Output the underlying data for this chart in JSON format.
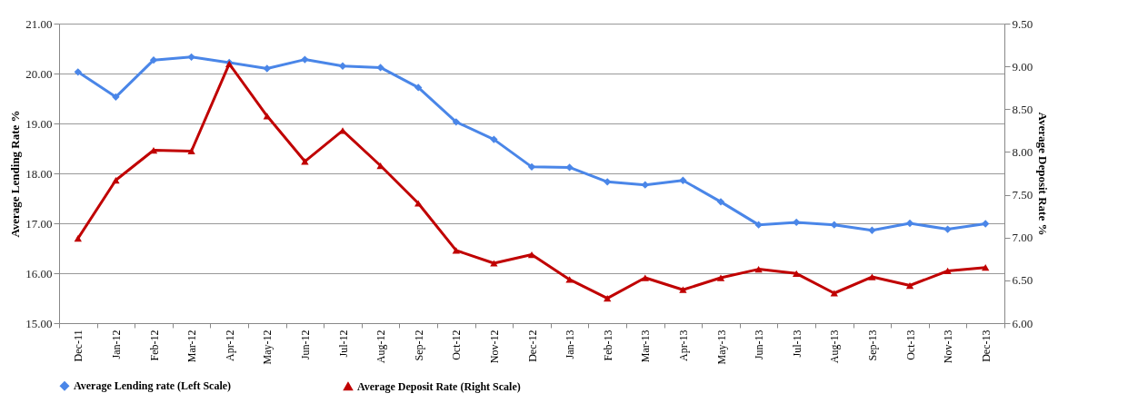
{
  "chart_data": {
    "type": "line",
    "ylabel": "Average Lending Rate %",
    "y2label": "Average Deposit Rate %",
    "categories": [
      "Dec-11",
      "Jan-12",
      "Feb-12",
      "Mar-12",
      "Apr-12",
      "May-12",
      "Jun-12",
      "Jul-12",
      "Aug-12",
      "Sep-12",
      "Oct-12",
      "Nov-12",
      "Dec-12",
      "Jan-13",
      "Feb-13",
      "Mar-13",
      "Apr-13",
      "May-13",
      "Jun-13",
      "Jul-13",
      "Aug-13",
      "Sep-13",
      "Oct-13",
      "Nov-13",
      "Dec-13"
    ],
    "series": [
      {
        "name": "Average Lending rate (Left Scale)",
        "color": "#4a86e8",
        "marker": "diamond",
        "values": [
          20.03,
          19.53,
          20.27,
          20.33,
          20.22,
          20.1,
          20.28,
          20.15,
          20.12,
          19.72,
          19.03,
          18.68,
          18.13,
          18.12,
          17.83,
          17.77,
          17.86,
          17.43,
          16.97,
          17.02,
          16.97,
          16.86,
          17.0,
          16.88,
          16.99
        ]
      },
      {
        "name": "Average Deposit Rate (Right Scale)",
        "color": "#c00000",
        "marker": "triangle",
        "axis": "y2",
        "values": [
          6.99,
          7.67,
          8.02,
          8.01,
          9.03,
          8.42,
          7.89,
          8.25,
          7.84,
          7.4,
          6.85,
          6.7,
          6.8,
          6.51,
          6.29,
          6.53,
          6.39,
          6.53,
          6.63,
          6.58,
          6.35,
          6.54,
          6.44,
          6.61,
          6.65
        ]
      }
    ],
    "ylim": [
      15,
      21
    ],
    "yticks": [
      {
        "value": 15,
        "label": "15.00"
      },
      {
        "value": 16,
        "label": "16.00"
      },
      {
        "value": 17,
        "label": "17.00"
      },
      {
        "value": 18,
        "label": "18.00"
      },
      {
        "value": 19,
        "label": "19.00"
      },
      {
        "value": 20,
        "label": "20.00"
      },
      {
        "value": 21,
        "label": "21.00"
      }
    ],
    "y2lim": [
      6,
      9.5
    ],
    "y2ticks": [
      {
        "value": 6,
        "label": "6.00"
      },
      {
        "value": 6.5,
        "label": "6.50"
      },
      {
        "value": 7,
        "label": "7.00"
      },
      {
        "value": 7.5,
        "label": "7.50"
      },
      {
        "value": 8,
        "label": "8.00"
      },
      {
        "value": 8.5,
        "label": "8.50"
      },
      {
        "value": 9,
        "label": "9.00"
      },
      {
        "value": 9.5,
        "label": "9.50"
      }
    ],
    "grid": "y",
    "legend": "bottom",
    "line_style": "solid"
  }
}
